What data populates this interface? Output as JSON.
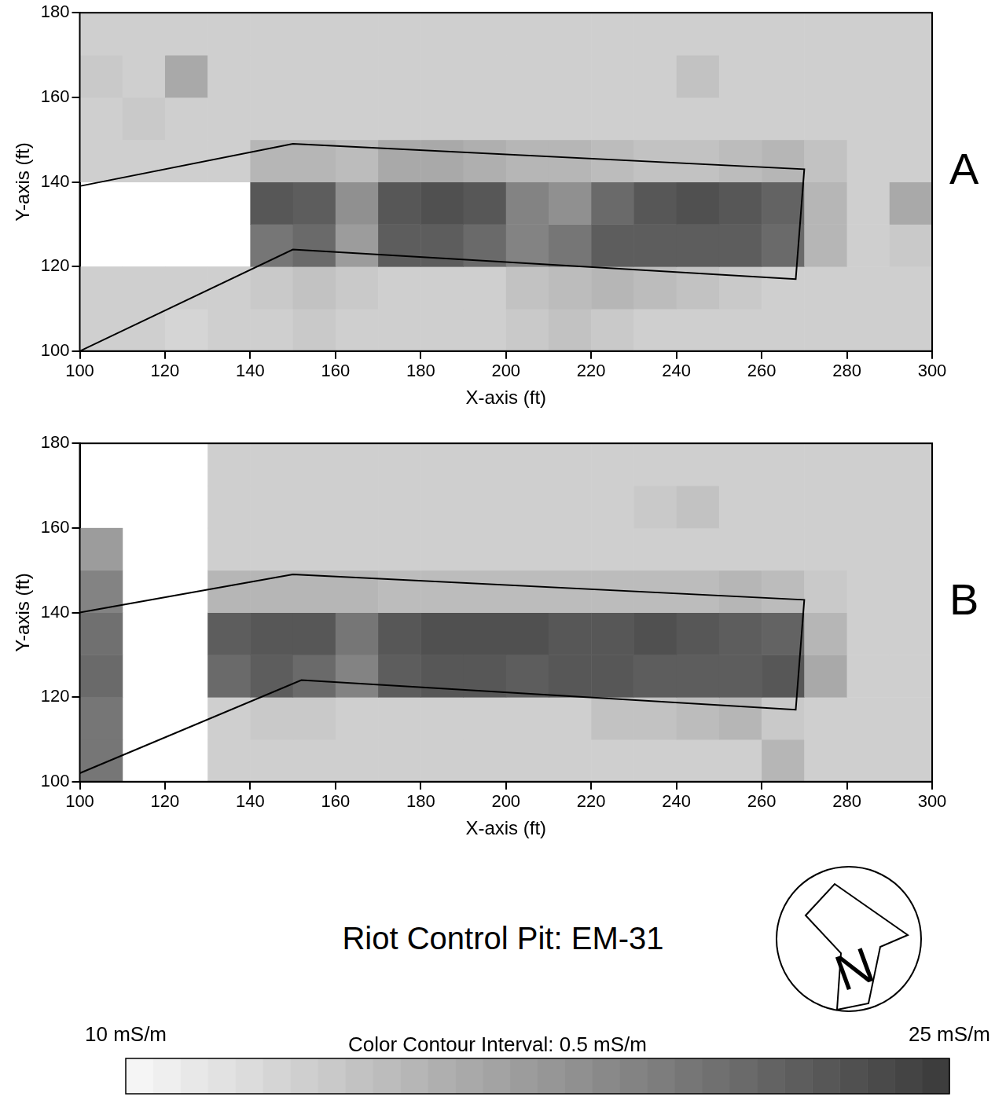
{
  "chart_data": [
    {
      "type": "heatmap",
      "panel": "A",
      "xlabel": "X-axis (ft)",
      "ylabel": "Y-axis (ft)",
      "xlim": [
        100,
        300
      ],
      "ylim": [
        100,
        180
      ],
      "xticks": [
        100,
        120,
        140,
        160,
        180,
        200,
        220,
        240,
        260,
        280,
        300
      ],
      "yticks": [
        100,
        120,
        140,
        160,
        180
      ],
      "grid": false,
      "cells": {
        "x": [
          105,
          115,
          125,
          135,
          145,
          155,
          165,
          175,
          185,
          195,
          205,
          215,
          225,
          235,
          245,
          255,
          265,
          275,
          285,
          295
        ],
        "y": [
          105,
          115,
          125,
          135,
          145,
          155,
          165,
          175
        ],
        "values": [
          [
            13,
            13,
            12.5,
            13,
            13,
            13.5,
            13,
            13,
            13,
            13,
            13.5,
            14,
            13.5,
            13,
            13,
            13,
            13,
            13,
            13,
            13
          ],
          [
            13,
            13,
            13,
            13,
            13.5,
            14,
            13.5,
            13,
            13,
            13,
            14,
            14.5,
            15,
            14.5,
            14,
            13.5,
            13,
            13,
            13,
            13
          ],
          [
            null,
            null,
            null,
            null,
            20,
            21,
            17,
            22,
            22,
            21,
            19,
            20,
            22,
            22,
            22,
            22,
            21,
            15,
            13,
            13.5
          ],
          [
            null,
            null,
            null,
            null,
            22.5,
            22,
            18,
            22.5,
            23,
            22.5,
            19,
            18,
            21,
            22.5,
            23,
            22.5,
            21.5,
            15,
            13,
            16
          ],
          [
            13,
            13,
            13,
            13,
            15,
            15,
            14.5,
            16,
            16,
            15.5,
            15,
            15,
            14.5,
            14,
            14,
            14.5,
            15,
            14,
            13,
            13
          ],
          [
            13,
            13.5,
            13,
            13,
            13,
            13,
            13,
            13,
            13,
            13,
            13,
            13,
            13,
            13,
            13,
            13,
            13,
            13,
            13,
            13
          ],
          [
            13.5,
            13,
            16,
            13,
            13,
            13,
            13,
            13,
            13,
            13,
            13,
            13,
            13,
            13,
            14,
            13,
            13,
            13,
            13,
            13
          ],
          [
            13,
            13,
            13,
            13,
            13,
            13,
            13,
            13,
            13,
            13,
            13,
            13,
            13,
            13,
            13,
            13,
            13,
            13,
            13,
            13
          ]
        ]
      },
      "outline": {
        "x": [
          100,
          150,
          270,
          268,
          150,
          100
        ],
        "y": [
          139,
          149,
          143,
          117,
          124,
          100
        ]
      }
    },
    {
      "type": "heatmap",
      "panel": "B",
      "xlabel": "X-axis (ft)",
      "ylabel": "Y-axis (ft)",
      "xlim": [
        100,
        300
      ],
      "ylim": [
        100,
        180
      ],
      "xticks": [
        100,
        120,
        140,
        160,
        180,
        200,
        220,
        240,
        260,
        280,
        300
      ],
      "yticks": [
        100,
        120,
        140,
        160,
        180
      ],
      "grid": false,
      "cells": {
        "x": [
          105,
          115,
          125,
          135,
          145,
          155,
          165,
          175,
          185,
          195,
          205,
          215,
          225,
          235,
          245,
          255,
          265,
          275,
          285,
          295
        ],
        "y": [
          105,
          115,
          125,
          135,
          145,
          155,
          165,
          175
        ],
        "values": [
          [
            20,
            null,
            null,
            13,
            13,
            13,
            13,
            13,
            13,
            13,
            13,
            13,
            13,
            13,
            13,
            13,
            15,
            13,
            13,
            13
          ],
          [
            20,
            null,
            null,
            13,
            13.5,
            13.5,
            13,
            13,
            13,
            13,
            13,
            13,
            14,
            14,
            14.5,
            15,
            13.5,
            13,
            13,
            13
          ],
          [
            21,
            null,
            null,
            21,
            22,
            21,
            19,
            22,
            22.5,
            22.5,
            22,
            22.5,
            22.5,
            22,
            22,
            22,
            22.5,
            16,
            13,
            13
          ],
          [
            20.5,
            null,
            null,
            22,
            22.5,
            22.5,
            20,
            22.5,
            23,
            23,
            23,
            22.5,
            22.5,
            23,
            22.5,
            22,
            21.5,
            15,
            13,
            13
          ],
          [
            19,
            null,
            null,
            15,
            15,
            15,
            15,
            14.5,
            14.5,
            14.5,
            14.5,
            14.5,
            14.5,
            14.5,
            14.5,
            15,
            14.5,
            13.5,
            13,
            13
          ],
          [
            17,
            null,
            null,
            13,
            13,
            13,
            13,
            13,
            13,
            13,
            13,
            13,
            13,
            13,
            13,
            13,
            13,
            13,
            13,
            13
          ],
          [
            null,
            null,
            null,
            13,
            13,
            13,
            13,
            13,
            13,
            13,
            13,
            13,
            13,
            13.5,
            14,
            13,
            13,
            13,
            13,
            13
          ],
          [
            null,
            null,
            null,
            13,
            13,
            13,
            13,
            13,
            13,
            13,
            13,
            13,
            13,
            13,
            13,
            13,
            13,
            13,
            13,
            13
          ]
        ]
      },
      "outline": {
        "x": [
          100,
          150,
          270,
          268,
          152,
          100
        ],
        "y": [
          140,
          149,
          143,
          117,
          124,
          102
        ]
      }
    }
  ],
  "title": "Riot Control Pit: EM-31",
  "north_label": "N",
  "colorbar": {
    "title": "Color Contour Interval: 0.5 mS/m",
    "range": [
      10,
      25
    ],
    "interval": 0.5,
    "ticks": [
      {
        "value": 10,
        "label": "10 mS/m"
      },
      {
        "value": 25,
        "label": "25 mS/m"
      }
    ]
  }
}
